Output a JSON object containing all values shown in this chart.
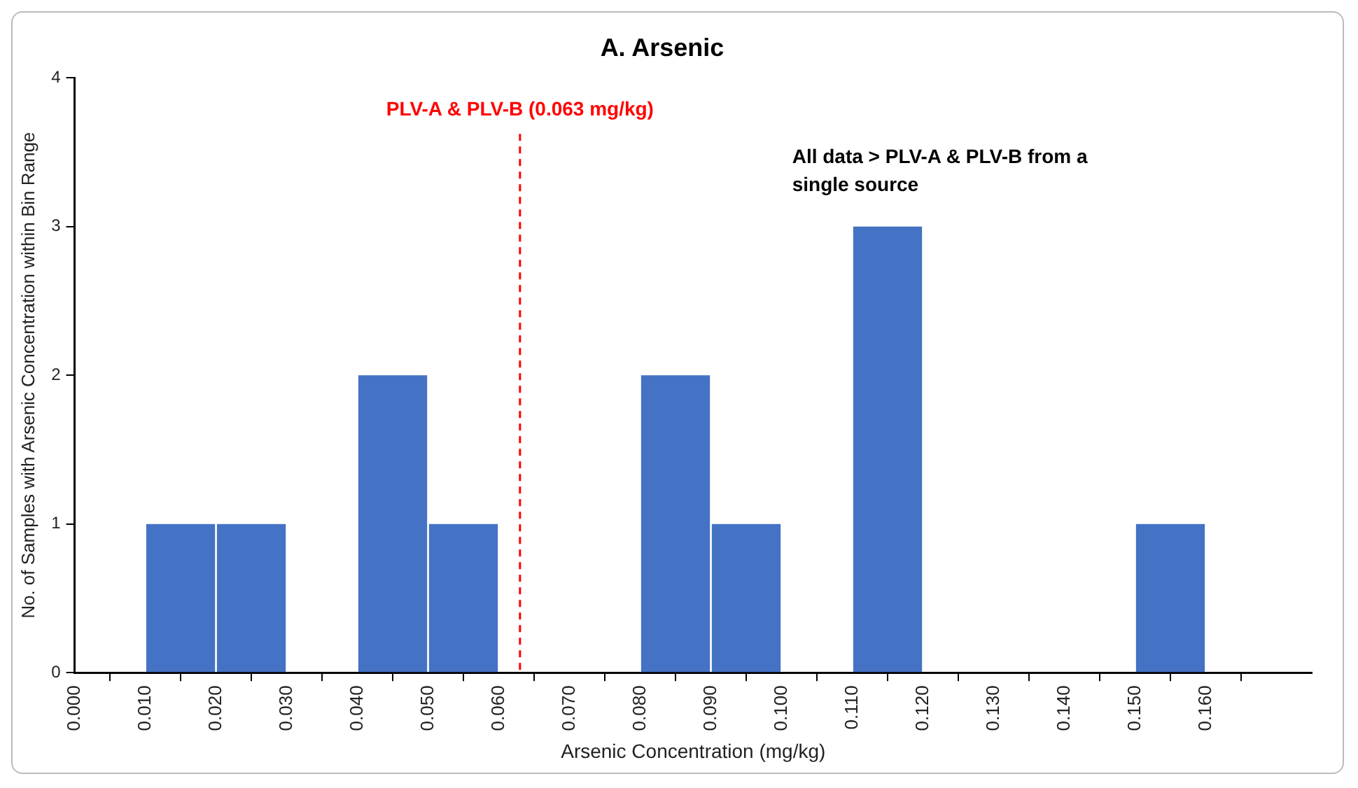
{
  "chart_data": {
    "type": "histogram",
    "title": "A. Arsenic",
    "xlabel": "Arsenic Concentration (mg/kg)",
    "ylabel": "No. of Samples with Arsenic Concentration within Bin Range",
    "bins": [
      0,
      0.01,
      0.02,
      0.03,
      0.04,
      0.05,
      0.06,
      0.07,
      0.08,
      0.09,
      0.1,
      0.11,
      0.12,
      0.13,
      0.14,
      0.15,
      0.16
    ],
    "values": [
      0,
      1,
      1,
      0,
      2,
      1,
      0,
      0,
      2,
      1,
      0,
      3,
      0,
      0,
      0,
      1
    ],
    "color": "#4472c4",
    "xlim": [
      0,
      0.175
    ],
    "xticks": [
      {
        "value": 0,
        "label": "0.000"
      },
      {
        "value": 0.01,
        "label": "0.010"
      },
      {
        "value": 0.02,
        "label": "0.020"
      },
      {
        "value": 0.03,
        "label": "0.030"
      },
      {
        "value": 0.04,
        "label": "0.040"
      },
      {
        "value": 0.05,
        "label": "0.050"
      },
      {
        "value": 0.06,
        "label": "0.060"
      },
      {
        "value": 0.07,
        "label": "0.070"
      },
      {
        "value": 0.08,
        "label": "0.080"
      },
      {
        "value": 0.09,
        "label": "0.090"
      },
      {
        "value": 0.1,
        "label": "0.100"
      },
      {
        "value": 0.11,
        "label": "0.110"
      },
      {
        "value": 0.12,
        "label": "0.120"
      },
      {
        "value": 0.13,
        "label": "0.130"
      },
      {
        "value": 0.14,
        "label": "0.140"
      },
      {
        "value": 0.15,
        "label": "0.150"
      },
      {
        "value": 0.16,
        "label": "0.160"
      }
    ],
    "ylim": [
      0,
      4
    ],
    "yticks": [
      0,
      1,
      2,
      3,
      4
    ],
    "grid": false,
    "ref_lines": [
      {
        "axis": "x",
        "value": 0.063,
        "label": "PLV-A & PLV-B (0.063 mg/kg)",
        "color": "#ff0000",
        "line_style": "dashed"
      }
    ],
    "annotations": [
      "All data > PLV-A & PLV-B from a single source"
    ]
  }
}
